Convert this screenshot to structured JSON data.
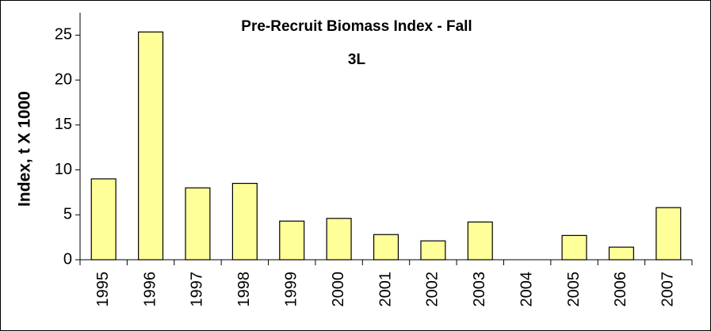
{
  "chart_data": {
    "type": "bar",
    "title": "Pre-Recruit Biomass Index - Fall",
    "subtitle": "3L",
    "y_label": "Index, t X 1000",
    "categories": [
      "1995",
      "1996",
      "1997",
      "1998",
      "1999",
      "2000",
      "2001",
      "2002",
      "2003",
      "2004",
      "2005",
      "2006",
      "2007"
    ],
    "values": [
      9.0,
      25.35,
      8.0,
      8.5,
      4.3,
      4.6,
      2.8,
      2.1,
      4.2,
      null,
      2.7,
      1.4,
      5.8
    ],
    "color": "#ffff99",
    "ylim": [
      0,
      27.5
    ],
    "yticks": [
      0,
      5,
      10,
      15,
      20,
      25
    ],
    "grid": false
  }
}
